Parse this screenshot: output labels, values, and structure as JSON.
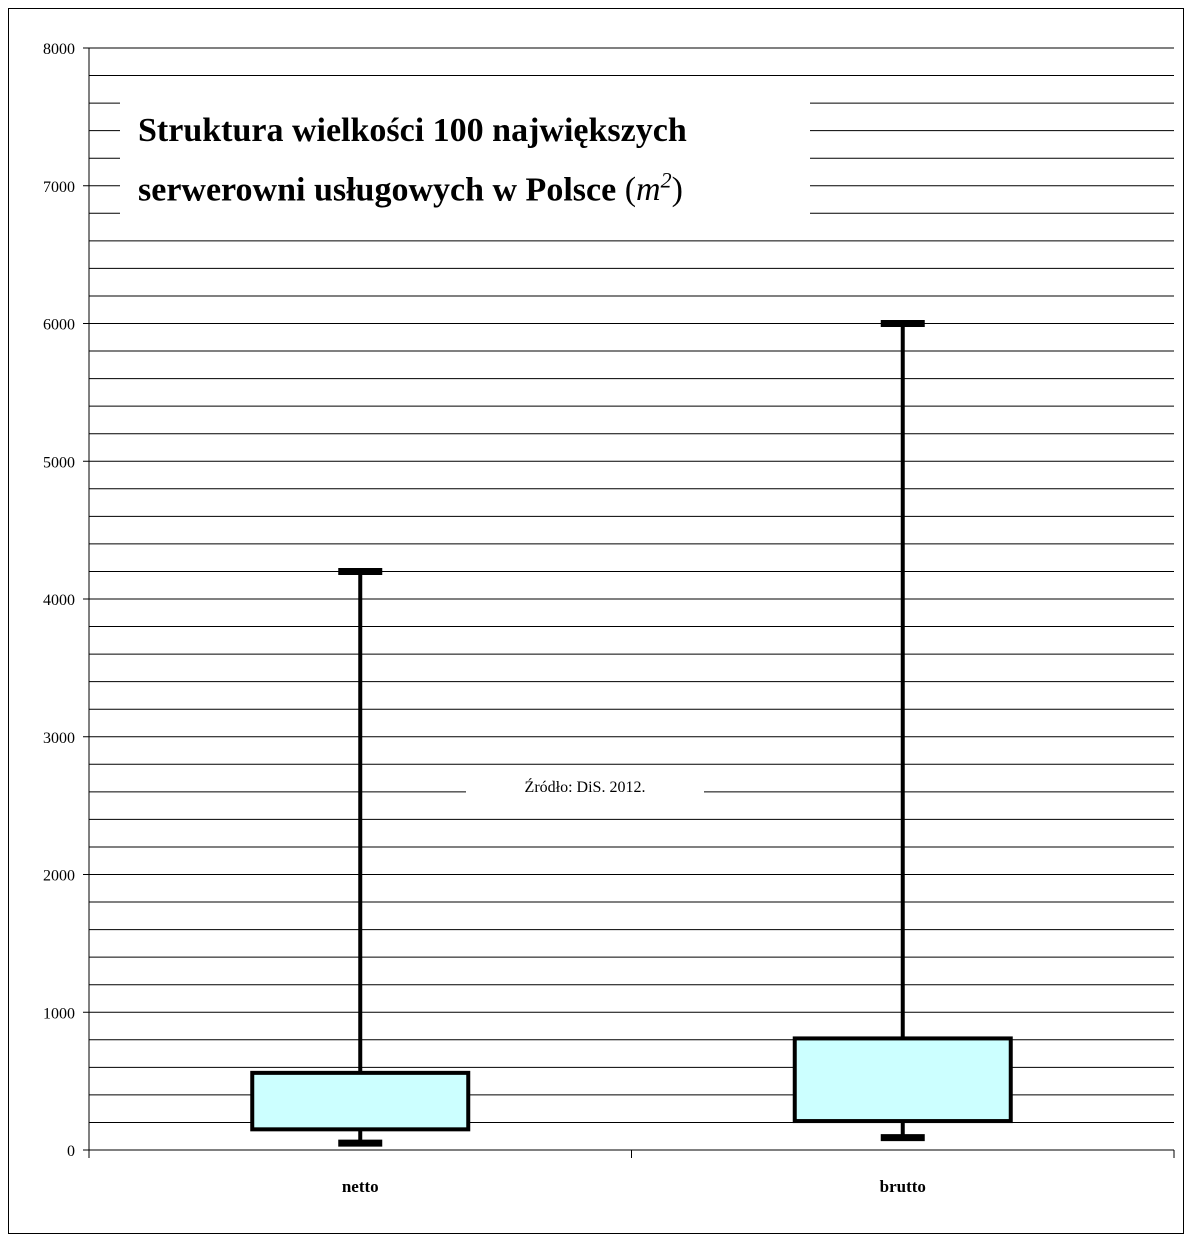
{
  "chart_data": {
    "type": "boxplot",
    "title_line1": "Struktura wielkości 100 największych",
    "title_line2": "serwerowni usługowych w Polsce",
    "title_unit_base": "m",
    "title_unit_exp": "2",
    "source": "Źródło: DiS. 2012.",
    "ylim": [
      0,
      8000
    ],
    "y_ticks": [
      "0",
      "1000",
      "2000",
      "3000",
      "4000",
      "5000",
      "6000",
      "7000",
      "8000"
    ],
    "y_tick_values": [
      0,
      1000,
      2000,
      3000,
      4000,
      5000,
      6000,
      7000,
      8000
    ],
    "grid_step": 200,
    "box_fill": "#ccffff",
    "categories": [
      "netto",
      "brutto"
    ],
    "boxes": [
      {
        "label": "netto",
        "min": 50,
        "q1": 150,
        "q3": 560,
        "max": 4200
      },
      {
        "label": "brutto",
        "min": 90,
        "q1": 210,
        "q3": 810,
        "max": 6000
      }
    ]
  }
}
